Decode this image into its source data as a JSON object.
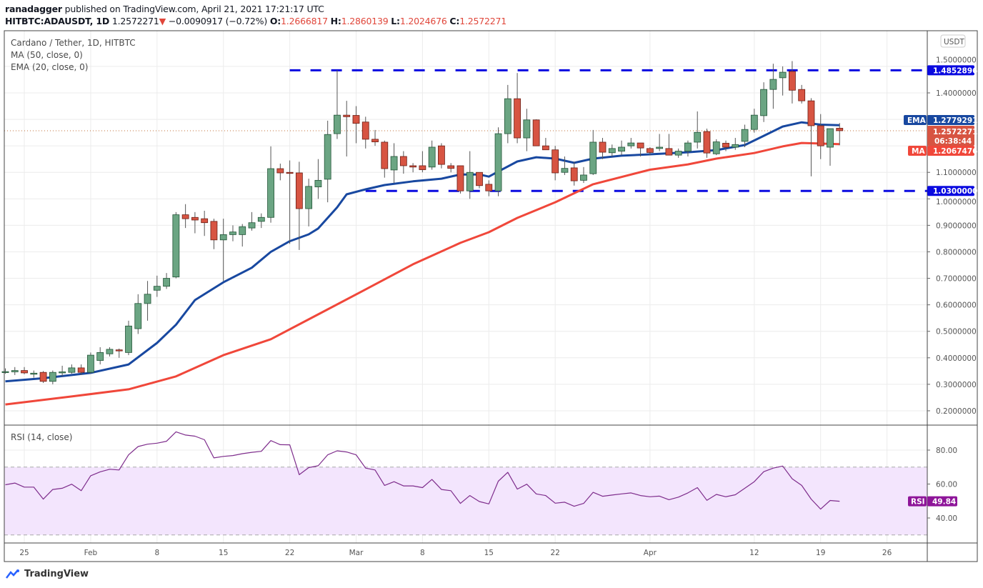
{
  "header": {
    "author": "ranadagger",
    "published_text": "published on TradingView.com, April 21, 2021 17:21:17 UTC",
    "symbol": "HITBTC:ADAUSDT, 1D",
    "last": "1.2572271",
    "change": "−0.0090917 (−0.72%)",
    "o_label": "O:",
    "o": "1.2666817",
    "h_label": "H:",
    "h": "1.2860139",
    "l_label": "L:",
    "l": "1.2024676",
    "c_label": "C:",
    "c": "1.2572271"
  },
  "legend": {
    "title": "Cardano / Tether, 1D, HITBTC",
    "ma": "MA (50, close, 0)",
    "ema": "EMA (20, close, 0)",
    "rsi": "RSI (14, close)"
  },
  "price_axis": {
    "currency": "USDT",
    "ticks": [
      "0.2000000",
      "0.3000000",
      "0.4000000",
      "0.5000000",
      "0.6000000",
      "0.7000000",
      "0.8000000",
      "0.9000000",
      "1.0000000",
      "1.1000000",
      "1.4000000",
      "1.5000000"
    ],
    "resistance_label": "1.4852896",
    "support_label": "1.0300000",
    "ema_tag": "EMA",
    "ema_value": "1.2779291",
    "ma_tag": "MA",
    "ma_value": "1.2067476",
    "last_value": "1.2572271",
    "countdown": "06:38:44"
  },
  "rsi_axis": {
    "ticks": [
      "80.00",
      "60.00",
      "40.00"
    ],
    "tag": "RSI",
    "value": "49.84"
  },
  "time_axis": {
    "ticks": [
      [
        "2021-01-25",
        "25"
      ],
      [
        "2021-02-01",
        "Feb"
      ],
      [
        "2021-02-08",
        "8"
      ],
      [
        "2021-02-15",
        "15"
      ],
      [
        "2021-02-22",
        "22"
      ],
      [
        "2021-03-01",
        "Mar"
      ],
      [
        "2021-03-08",
        "8"
      ],
      [
        "2021-03-15",
        "15"
      ],
      [
        "2021-03-22",
        "22"
      ],
      [
        "2021-04-01",
        "Apr"
      ],
      [
        "2021-04-12",
        "12"
      ],
      [
        "2021-04-19",
        "19"
      ],
      [
        "2021-04-26",
        "26"
      ]
    ]
  },
  "footer": {
    "brand": "TradingView"
  },
  "colors": {
    "up": "#6ba583",
    "up_border": "#225437",
    "down": "#d75442",
    "down_border": "#6b1f16",
    "ema": "#1848a0",
    "ma": "#f0473a",
    "rsi": "#7e2d8c",
    "rsi_band": "#f3e5fd",
    "level": "#0a0ae0"
  },
  "chart_data": {
    "type": "candlestick",
    "title": "Cardano / Tether, 1D, HITBTC",
    "ylim": [
      0.15,
      1.58
    ],
    "grid": true,
    "horizontal_levels": [
      {
        "value": 1.4852896,
        "from": "2021-02-22"
      },
      {
        "value": 1.03,
        "from": "2021-03-02"
      }
    ],
    "candles_fields": [
      "date",
      "open",
      "high",
      "low",
      "close"
    ],
    "candles": [
      [
        "2021-01-23",
        0.345,
        0.36,
        0.34,
        0.348
      ],
      [
        "2021-01-24",
        0.347,
        0.365,
        0.335,
        0.352
      ],
      [
        "2021-01-25",
        0.352,
        0.365,
        0.338,
        0.343
      ],
      [
        "2021-01-26",
        0.34,
        0.352,
        0.325,
        0.342
      ],
      [
        "2021-01-27",
        0.345,
        0.35,
        0.305,
        0.311
      ],
      [
        "2021-01-28",
        0.311,
        0.352,
        0.3,
        0.345
      ],
      [
        "2021-01-29",
        0.343,
        0.37,
        0.33,
        0.347
      ],
      [
        "2021-01-30",
        0.345,
        0.375,
        0.34,
        0.362
      ],
      [
        "2021-01-31",
        0.362,
        0.375,
        0.335,
        0.345
      ],
      [
        "2021-02-01",
        0.345,
        0.42,
        0.34,
        0.41
      ],
      [
        "2021-02-02",
        0.39,
        0.44,
        0.375,
        0.42
      ],
      [
        "2021-02-03",
        0.415,
        0.44,
        0.405,
        0.432
      ],
      [
        "2021-02-04",
        0.43,
        0.435,
        0.4,
        0.428
      ],
      [
        "2021-02-05",
        0.42,
        0.54,
        0.41,
        0.52
      ],
      [
        "2021-02-06",
        0.51,
        0.64,
        0.49,
        0.605
      ],
      [
        "2021-02-07",
        0.605,
        0.69,
        0.54,
        0.64
      ],
      [
        "2021-02-08",
        0.655,
        0.71,
        0.63,
        0.67
      ],
      [
        "2021-02-09",
        0.67,
        0.72,
        0.66,
        0.7
      ],
      [
        "2021-02-10",
        0.705,
        0.95,
        0.7,
        0.94
      ],
      [
        "2021-02-11",
        0.94,
        0.98,
        0.89,
        0.925
      ],
      [
        "2021-02-12",
        0.93,
        0.95,
        0.87,
        0.92
      ],
      [
        "2021-02-13",
        0.925,
        0.955,
        0.86,
        0.91
      ],
      [
        "2021-02-14",
        0.915,
        0.925,
        0.81,
        0.845
      ],
      [
        "2021-02-15",
        0.845,
        0.925,
        0.69,
        0.865
      ],
      [
        "2021-02-16",
        0.865,
        0.9,
        0.84,
        0.875
      ],
      [
        "2021-02-17",
        0.865,
        0.905,
        0.82,
        0.895
      ],
      [
        "2021-02-18",
        0.89,
        0.95,
        0.88,
        0.91
      ],
      [
        "2021-02-19",
        0.915,
        0.945,
        0.89,
        0.93
      ],
      [
        "2021-02-20",
        0.93,
        1.198,
        0.91,
        1.114
      ],
      [
        "2021-02-21",
        1.114,
        1.133,
        1.07,
        1.098
      ],
      [
        "2021-02-22",
        1.1,
        1.145,
        0.83,
        1.098
      ],
      [
        "2021-02-23",
        1.098,
        1.14,
        0.807,
        0.963
      ],
      [
        "2021-02-24",
        0.963,
        1.076,
        0.896,
        1.047
      ],
      [
        "2021-02-25",
        1.045,
        1.15,
        1.0,
        1.07
      ],
      [
        "2021-02-26",
        1.074,
        1.295,
        0.987,
        1.243
      ],
      [
        "2021-02-27",
        1.246,
        1.486,
        1.226,
        1.316
      ],
      [
        "2021-02-28",
        1.316,
        1.37,
        1.16,
        1.31
      ],
      [
        "2021-03-01",
        1.315,
        1.35,
        1.21,
        1.285
      ],
      [
        "2021-03-02",
        1.29,
        1.31,
        1.19,
        1.225
      ],
      [
        "2021-03-03",
        1.225,
        1.26,
        1.2,
        1.215
      ],
      [
        "2021-03-04",
        1.214,
        1.22,
        1.08,
        1.114
      ],
      [
        "2021-03-05",
        1.109,
        1.21,
        1.06,
        1.16
      ],
      [
        "2021-03-06",
        1.16,
        1.18,
        1.095,
        1.125
      ],
      [
        "2021-03-07",
        1.125,
        1.135,
        1.1,
        1.12
      ],
      [
        "2021-03-08",
        1.125,
        1.18,
        1.1,
        1.11
      ],
      [
        "2021-03-09",
        1.12,
        1.22,
        1.11,
        1.195
      ],
      [
        "2021-03-10",
        1.2,
        1.21,
        1.115,
        1.13
      ],
      [
        "2021-03-11",
        1.125,
        1.135,
        1.1,
        1.115
      ],
      [
        "2021-03-12",
        1.125,
        1.125,
        1.02,
        1.03
      ],
      [
        "2021-03-13",
        1.03,
        1.18,
        1.0,
        1.1
      ],
      [
        "2021-03-14",
        1.1,
        1.1,
        1.04,
        1.05
      ],
      [
        "2021-03-15",
        1.055,
        1.07,
        1.01,
        1.03
      ],
      [
        "2021-03-16",
        1.03,
        1.27,
        1.01,
        1.246
      ],
      [
        "2021-03-17",
        1.246,
        1.43,
        1.21,
        1.378
      ],
      [
        "2021-03-18",
        1.378,
        1.475,
        1.21,
        1.23
      ],
      [
        "2021-03-19",
        1.23,
        1.34,
        1.18,
        1.298
      ],
      [
        "2021-03-20",
        1.298,
        1.3,
        1.2,
        1.2
      ],
      [
        "2021-03-21",
        1.2,
        1.23,
        1.185,
        1.185
      ],
      [
        "2021-03-22",
        1.185,
        1.2,
        1.07,
        1.098
      ],
      [
        "2021-03-23",
        1.1,
        1.16,
        1.09,
        1.115
      ],
      [
        "2021-03-24",
        1.117,
        1.14,
        1.05,
        1.068
      ],
      [
        "2021-03-25",
        1.07,
        1.12,
        1.06,
        1.09
      ],
      [
        "2021-03-26",
        1.095,
        1.26,
        1.09,
        1.214
      ],
      [
        "2021-03-27",
        1.214,
        1.23,
        1.15,
        1.176
      ],
      [
        "2021-03-28",
        1.174,
        1.205,
        1.16,
        1.19
      ],
      [
        "2021-03-29",
        1.18,
        1.22,
        1.165,
        1.195
      ],
      [
        "2021-03-30",
        1.2,
        1.23,
        1.19,
        1.211
      ],
      [
        "2021-03-31",
        1.211,
        1.21,
        1.16,
        1.192
      ],
      [
        "2021-04-01",
        1.19,
        1.195,
        1.165,
        1.175
      ],
      [
        "2021-04-02",
        1.19,
        1.245,
        1.18,
        1.195
      ],
      [
        "2021-04-03",
        1.19,
        1.245,
        1.165,
        1.165
      ],
      [
        "2021-04-04",
        1.165,
        1.19,
        1.155,
        1.18
      ],
      [
        "2021-04-05",
        1.18,
        1.22,
        1.16,
        1.211
      ],
      [
        "2021-04-06",
        1.214,
        1.33,
        1.19,
        1.251
      ],
      [
        "2021-04-07",
        1.254,
        1.265,
        1.155,
        1.173
      ],
      [
        "2021-04-08",
        1.17,
        1.225,
        1.165,
        1.215
      ],
      [
        "2021-04-09",
        1.21,
        1.22,
        1.18,
        1.195
      ],
      [
        "2021-04-10",
        1.195,
        1.23,
        1.185,
        1.205
      ],
      [
        "2021-04-11",
        1.217,
        1.28,
        1.195,
        1.262
      ],
      [
        "2021-04-12",
        1.262,
        1.34,
        1.25,
        1.316
      ],
      [
        "2021-04-13",
        1.314,
        1.44,
        1.29,
        1.413
      ],
      [
        "2021-04-14",
        1.413,
        1.51,
        1.34,
        1.451
      ],
      [
        "2021-04-15",
        1.457,
        1.5,
        1.39,
        1.478
      ],
      [
        "2021-04-16",
        1.481,
        1.52,
        1.36,
        1.41
      ],
      [
        "2021-04-17",
        1.413,
        1.43,
        1.36,
        1.37
      ],
      [
        "2021-04-18",
        1.37,
        1.38,
        1.085,
        1.276
      ],
      [
        "2021-04-19",
        1.276,
        1.32,
        1.15,
        1.2
      ],
      [
        "2021-04-20",
        1.195,
        1.26,
        1.125,
        1.265
      ],
      [
        "2021-04-21",
        1.2666817,
        1.2860139,
        1.2024676,
        1.2572271
      ]
    ],
    "ema20": [
      [
        "2021-01-23",
        0.311
      ],
      [
        "2021-01-27",
        0.323
      ],
      [
        "2021-02-01",
        0.343
      ],
      [
        "2021-02-05",
        0.375
      ],
      [
        "2021-02-08",
        0.456
      ],
      [
        "2021-02-10",
        0.525
      ],
      [
        "2021-02-12",
        0.618
      ],
      [
        "2021-02-15",
        0.685
      ],
      [
        "2021-02-18",
        0.74
      ],
      [
        "2021-02-20",
        0.8
      ],
      [
        "2021-02-22",
        0.84
      ],
      [
        "2021-02-24",
        0.866
      ],
      [
        "2021-02-25",
        0.888
      ],
      [
        "2021-02-27",
        0.968
      ],
      [
        "2021-02-28",
        1.017
      ],
      [
        "2021-03-02",
        1.036
      ],
      [
        "2021-03-04",
        1.052
      ],
      [
        "2021-03-07",
        1.066
      ],
      [
        "2021-03-10",
        1.076
      ],
      [
        "2021-03-12",
        1.092
      ],
      [
        "2021-03-14",
        1.092
      ],
      [
        "2021-03-15",
        1.084
      ],
      [
        "2021-03-16",
        1.103
      ],
      [
        "2021-03-18",
        1.141
      ],
      [
        "2021-03-20",
        1.157
      ],
      [
        "2021-03-22",
        1.152
      ],
      [
        "2021-03-24",
        1.136
      ],
      [
        "2021-03-26",
        1.152
      ],
      [
        "2021-03-29",
        1.163
      ],
      [
        "2021-04-01",
        1.168
      ],
      [
        "2021-04-05",
        1.176
      ],
      [
        "2021-04-08",
        1.184
      ],
      [
        "2021-04-11",
        1.203
      ],
      [
        "2021-04-13",
        1.238
      ],
      [
        "2021-04-15",
        1.273
      ],
      [
        "2021-04-17",
        1.289
      ],
      [
        "2021-04-19",
        1.28
      ],
      [
        "2021-04-21",
        1.2779291
      ]
    ],
    "ma50": [
      [
        "2021-01-23",
        0.224
      ],
      [
        "2021-01-30",
        0.254
      ],
      [
        "2021-02-05",
        0.281
      ],
      [
        "2021-02-10",
        0.33
      ],
      [
        "2021-02-15",
        0.41
      ],
      [
        "2021-02-20",
        0.47
      ],
      [
        "2021-02-25",
        0.564
      ],
      [
        "2021-03-02",
        0.658
      ],
      [
        "2021-03-07",
        0.753
      ],
      [
        "2021-03-12",
        0.834
      ],
      [
        "2021-03-15",
        0.874
      ],
      [
        "2021-03-18",
        0.928
      ],
      [
        "2021-03-22",
        0.987
      ],
      [
        "2021-03-26",
        1.055
      ],
      [
        "2021-04-01",
        1.11
      ],
      [
        "2021-04-05",
        1.13
      ],
      [
        "2021-04-08",
        1.152
      ],
      [
        "2021-04-12",
        1.173
      ],
      [
        "2021-04-15",
        1.198
      ],
      [
        "2021-04-17",
        1.211
      ],
      [
        "2021-04-21",
        1.2067476
      ]
    ],
    "rsi": {
      "ylim": [
        23,
        96
      ],
      "band": [
        30,
        70
      ],
      "values": [
        59.6,
        60.6,
        58.2,
        58.2,
        51.1,
        56.8,
        57.5,
        59.9,
        56.1,
        64.9,
        67.2,
        68.7,
        68.3,
        77.2,
        82.1,
        83.5,
        84.1,
        85.2,
        90.8,
        88.9,
        88.2,
        86.1,
        75.4,
        76.3,
        76.8,
        77.9,
        78.7,
        79.3,
        85.6,
        83.2,
        83.1,
        65.5,
        69.7,
        70.8,
        77.2,
        79.6,
        78.9,
        77.2,
        69.4,
        68.3,
        59.2,
        61.4,
        58.9,
        58.9,
        57.9,
        62.7,
        56.8,
        56.1,
        48.6,
        53.2,
        49.7,
        48.3,
        61.7,
        66.9,
        57.0,
        59.9,
        54.2,
        53.2,
        48.7,
        49.3,
        46.9,
        48.6,
        55.1,
        52.8,
        53.5,
        54.2,
        54.8,
        53.2,
        52.5,
        52.9,
        50.8,
        52.3,
        54.8,
        57.9,
        50.4,
        53.9,
        52.5,
        53.7,
        57.5,
        61.4,
        67.3,
        69.4,
        70.6,
        63.1,
        59.2,
        51.1,
        45.2,
        50.3,
        49.84
      ]
    }
  }
}
